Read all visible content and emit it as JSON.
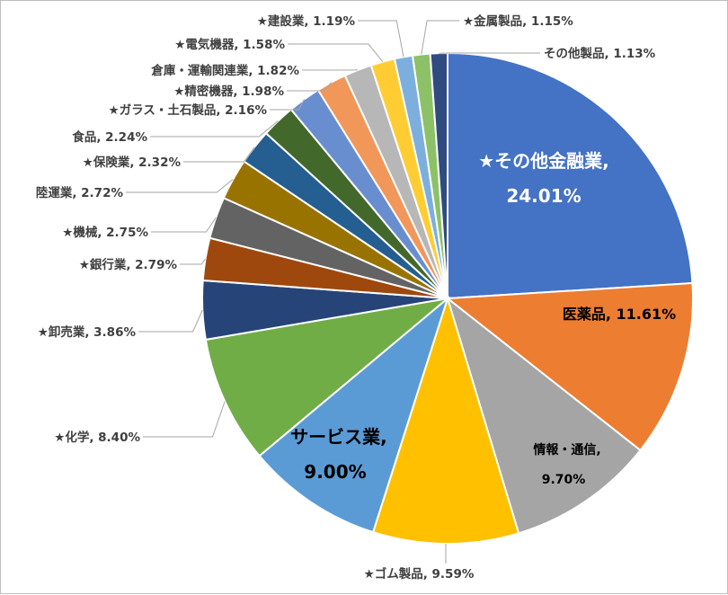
{
  "chart_data": {
    "type": "pie",
    "title": "",
    "slices": [
      {
        "label": "★その他金融業",
        "value": 24.01,
        "text": "24.01%",
        "color": "#4472C4"
      },
      {
        "label": "医薬品",
        "value": 11.61,
        "text": "11.61%",
        "color": "#ED7D31"
      },
      {
        "label": "情報・通信",
        "value": 9.7,
        "text": "9.70%",
        "color": "#A5A5A5"
      },
      {
        "label": "★ゴム製品",
        "value": 9.59,
        "text": "9.59%",
        "color": "#FFC000"
      },
      {
        "label": "サービス業",
        "value": 9.0,
        "text": "9.00%",
        "color": "#5B9BD5"
      },
      {
        "label": "★化学",
        "value": 8.4,
        "text": "8.40%",
        "color": "#70AD47"
      },
      {
        "label": "★卸売業",
        "value": 3.86,
        "text": "3.86%",
        "color": "#264478"
      },
      {
        "label": "★銀行業",
        "value": 2.79,
        "text": "2.79%",
        "color": "#9E480E"
      },
      {
        "label": "★機械",
        "value": 2.75,
        "text": "2.75%",
        "color": "#636363"
      },
      {
        "label": "陸運業",
        "value": 2.72,
        "text": "2.72%",
        "color": "#997300"
      },
      {
        "label": "★保険業",
        "value": 2.32,
        "text": "2.32%",
        "color": "#255E91"
      },
      {
        "label": "食品",
        "value": 2.24,
        "text": "2.24%",
        "color": "#43682B"
      },
      {
        "label": "★ガラス・土石製品",
        "value": 2.16,
        "text": "2.16%",
        "color": "#698ED0"
      },
      {
        "label": "★精密機器",
        "value": 1.98,
        "text": "1.98%",
        "color": "#F1975A"
      },
      {
        "label": "倉庫・運輸関連業",
        "value": 1.82,
        "text": "1.82%",
        "color": "#B7B7B7"
      },
      {
        "label": "★電気機器",
        "value": 1.58,
        "text": "1.58%",
        "color": "#FFCD33"
      },
      {
        "label": "★建設業",
        "value": 1.19,
        "text": "1.19%",
        "color": "#7CAFDD"
      },
      {
        "label": "★金属製品",
        "value": 1.15,
        "text": "1.15%",
        "color": "#8CC168"
      },
      {
        "label": "その他製品",
        "value": 1.13,
        "text": "1.13%",
        "color": "#2F4B7F"
      }
    ]
  }
}
